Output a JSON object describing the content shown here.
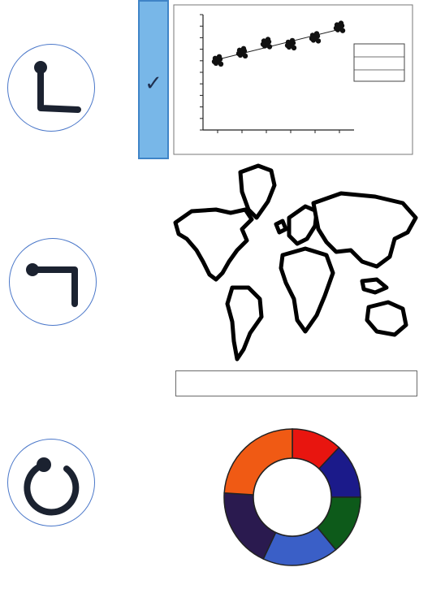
{
  "options": [
    {
      "gesture_icon": "L-stroke-gesture-icon",
      "target": "scatter-chart-thumbnail",
      "selected": true
    },
    {
      "gesture_icon": "hook-stroke-gesture-icon",
      "target": "world-map-thumbnail",
      "selected": false
    },
    {
      "gesture_icon": "circle-stroke-gesture-icon",
      "target": "donut-chart-thumbnail",
      "selected": false
    }
  ],
  "selection": {
    "check_mark": "✓",
    "accent": "#78b7e8",
    "border": "#3f84c7"
  },
  "scatter": {
    "x": [
      1,
      2,
      3,
      4,
      5,
      6
    ],
    "y": [
      0.6,
      0.67,
      0.75,
      0.74,
      0.8,
      0.89
    ],
    "xlim": [
      0.4,
      6.6
    ],
    "ylim": [
      0,
      1
    ]
  },
  "donut": {
    "slices": [
      {
        "value": 12,
        "color": "#e8150f"
      },
      {
        "value": 13,
        "color": "#1b1a8a"
      },
      {
        "value": 14,
        "color": "#0d5a1a"
      },
      {
        "value": 18,
        "color": "#3a5fc7"
      },
      {
        "value": 19,
        "color": "#2a1a4f"
      },
      {
        "value": 24,
        "color": "#f05a14"
      }
    ]
  },
  "map": {
    "outline_color": "#000000"
  }
}
